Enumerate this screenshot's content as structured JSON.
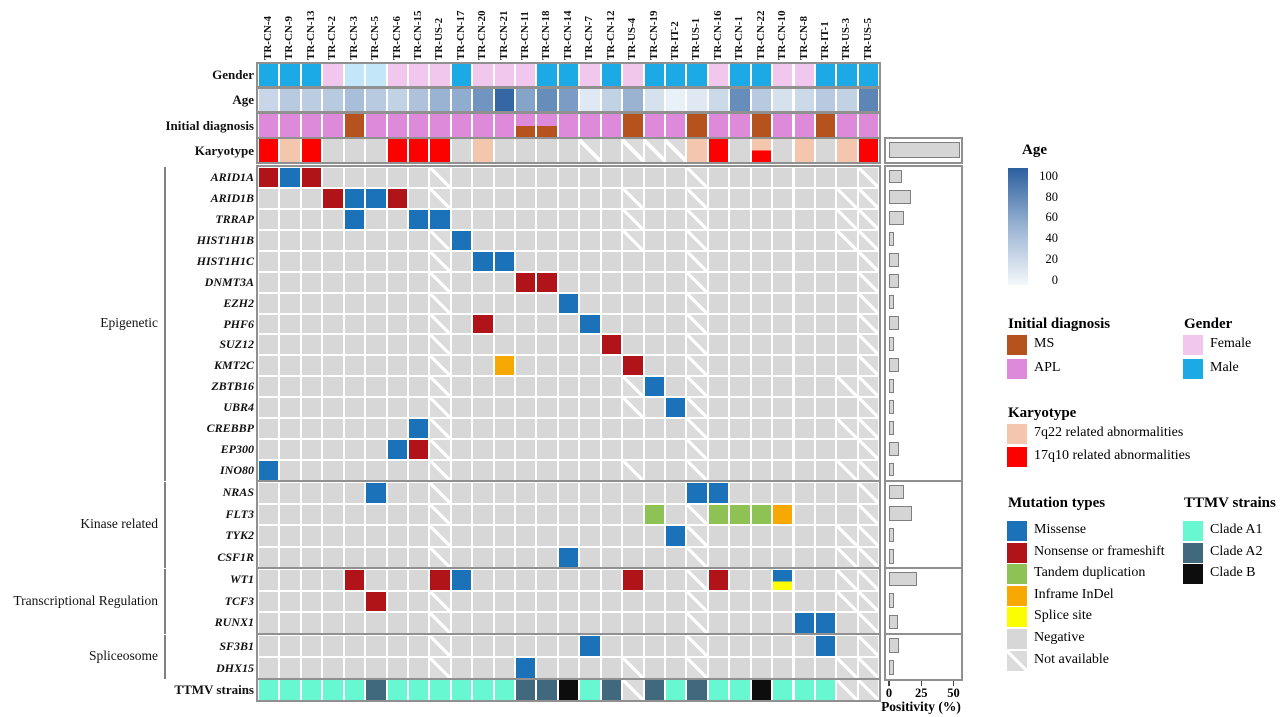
{
  "colors": {
    "male": "#1BAAE6",
    "male_light": "#C3E7F8",
    "female": "#F1C7EE",
    "APL": "#DE8ADB",
    "MS": "#B5521E",
    "7q22": "#F4C6AE",
    "17q10": "#FB0200",
    "MIS": "#1B72B9",
    "NON": "#B11418",
    "TDUP": "#8EC255",
    "INDEL": "#F8A802",
    "SPLICE": "#FDFD02",
    "NEG": "#D7D7D7",
    "NA_base": "#DBDBDB",
    "A1": "#68F8D1",
    "A2": "#41697E",
    "B": "#0D0D0D",
    "age_low": "#F4F8FC",
    "age_high": "#2B5F9F",
    "bar_fill": "#D5D5D5",
    "bar_border": "#7F7F7F",
    "panel_border": "#909090"
  },
  "chart_data": {
    "type": "heatmap",
    "subtype": "oncoprint",
    "samples": [
      "TR-CN-4",
      "TR-CN-9",
      "TR-CN-13",
      "TR-CN-2",
      "TR-CN-3",
      "TR-CN-5",
      "TR-CN-6",
      "TR-CN-15",
      "TR-US-2",
      "TR-CN-17",
      "TR-CN-20",
      "TR-CN-21",
      "TR-CN-11",
      "TR-CN-18",
      "TR-CN-14",
      "TR-CN-7",
      "TR-CN-12",
      "TR-US-4",
      "TR-CN-19",
      "TR-IT-2",
      "TR-US-1",
      "TR-CN-16",
      "TR-CN-1",
      "TR-CN-22",
      "TR-CN-10",
      "TR-CN-8",
      "TR-IT-1",
      "TR-US-3",
      "TR-US-5"
    ],
    "annotations": {
      "gender": {
        "label": "Gender",
        "values": [
          "M",
          "M",
          "M",
          "F",
          "M_light",
          "M_light",
          "F",
          "F",
          "F",
          "M",
          "F",
          "F",
          "F",
          "M",
          "M",
          "F",
          "M",
          "F",
          "M",
          "M",
          "M",
          "F",
          "M",
          "M",
          "F",
          "F",
          "M",
          "M",
          "M"
        ]
      },
      "age": {
        "label": "Age",
        "scale": [
          0,
          100
        ],
        "values": [
          22,
          30,
          28,
          30,
          38,
          30,
          25,
          35,
          45,
          50,
          65,
          95,
          55,
          70,
          60,
          10,
          25,
          45,
          15,
          5,
          10,
          20,
          70,
          30,
          15,
          20,
          30,
          25,
          75
        ]
      },
      "initial_diagnosis": {
        "label": "Initial diagnosis",
        "values": [
          "APL",
          "APL",
          "APL",
          "APL",
          "MS",
          "APL",
          "APL",
          "APL",
          "APL",
          "APL",
          "APL",
          "APL",
          "APL|MS",
          "APL|MS",
          "APL",
          "APL",
          "APL",
          "MS",
          "APL",
          "APL",
          "MS",
          "APL",
          "APL",
          "MS",
          "APL",
          "APL",
          "MS",
          "APL",
          "APL"
        ]
      },
      "karyotype": {
        "label": "Karyotype",
        "positivity_pct": 55,
        "values": [
          "17q10",
          "7q22",
          "17q10",
          "NEG",
          "NEG",
          "NEG",
          "17q10",
          "17q10",
          "17q10",
          "NEG",
          "7q22",
          "NEG",
          "NEG",
          "NEG",
          "NEG",
          "NA",
          "NEG",
          "NA",
          "NA",
          "NA",
          "7q22",
          "17q10",
          "NEG",
          "7q22|17q10",
          "NEG",
          "7q22",
          "NEG",
          "7q22",
          "17q10"
        ]
      }
    },
    "groups": [
      {
        "name": "Epigenetic",
        "genes": [
          {
            "name": "ARID1A",
            "positivity_pct": 10,
            "cells": {
              "1": "NON",
              "2": "MIS",
              "3": "NON",
              "9": "NA",
              "21": "NA",
              "29": "NA"
            }
          },
          {
            "name": "ARID1B",
            "positivity_pct": 17,
            "cells": {
              "4": "NON",
              "5": "MIS",
              "6": "MIS",
              "7": "NON",
              "9": "NA",
              "18": "NA",
              "21": "NA",
              "28": "NA",
              "29": "NA"
            }
          },
          {
            "name": "TRRAP",
            "positivity_pct": 12,
            "cells": {
              "5": "MIS",
              "8": "MIS",
              "9": "MIS",
              "18": "NA",
              "21": "NA",
              "28": "NA",
              "29": "NA"
            }
          },
          {
            "name": "HIST1H1B",
            "positivity_pct": 4,
            "cells": {
              "9": "NA",
              "10": "MIS",
              "18": "NA",
              "21": "NA",
              "28": "NA",
              "29": "NA"
            }
          },
          {
            "name": "HIST1H1C",
            "positivity_pct": 8,
            "cells": {
              "9": "NA",
              "11": "MIS",
              "12": "MIS",
              "21": "NA",
              "29": "NA"
            }
          },
          {
            "name": "DNMT3A",
            "positivity_pct": 8,
            "cells": {
              "9": "NA",
              "13": "NON",
              "14": "NON",
              "21": "NA",
              "29": "NA"
            }
          },
          {
            "name": "EZH2",
            "positivity_pct": 4,
            "cells": {
              "9": "NA",
              "15": "MIS",
              "21": "NA",
              "29": "NA"
            }
          },
          {
            "name": "PHF6",
            "positivity_pct": 8,
            "cells": {
              "9": "NA",
              "11": "NON",
              "16": "MIS",
              "21": "NA",
              "29": "NA"
            }
          },
          {
            "name": "SUZ12",
            "positivity_pct": 4,
            "cells": {
              "9": "NA",
              "17": "NON",
              "21": "NA",
              "29": "NA"
            }
          },
          {
            "name": "KMT2C",
            "positivity_pct": 8,
            "cells": {
              "9": "NA",
              "12": "INDEL",
              "18": "NON",
              "21": "NA",
              "29": "NA"
            }
          },
          {
            "name": "ZBTB16",
            "positivity_pct": 4,
            "cells": {
              "9": "NA",
              "18": "NA",
              "19": "MIS",
              "21": "NA",
              "28": "NA",
              "29": "NA"
            }
          },
          {
            "name": "UBR4",
            "positivity_pct": 4,
            "cells": {
              "9": "NA",
              "18": "NA",
              "20": "MIS",
              "21": "NA",
              "29": "NA"
            }
          },
          {
            "name": "CREBBP",
            "positivity_pct": 4,
            "cells": {
              "8": "MIS",
              "9": "NA",
              "21": "NA",
              "28": "NA",
              "29": "NA"
            }
          },
          {
            "name": "EP300",
            "positivity_pct": 8,
            "cells": {
              "7": "MIS",
              "8": "NON",
              "9": "NA",
              "21": "NA",
              "29": "NA"
            }
          },
          {
            "name": "INO80",
            "positivity_pct": 4,
            "cells": {
              "1": "MIS",
              "9": "NA",
              "18": "NA",
              "21": "NA",
              "28": "NA",
              "29": "NA"
            }
          }
        ]
      },
      {
        "name": "Kinase related",
        "genes": [
          {
            "name": "NRAS",
            "positivity_pct": 12,
            "cells": {
              "6": "MIS",
              "9": "NA",
              "21": "MIS",
              "22": "MIS",
              "29": "NA"
            }
          },
          {
            "name": "FLT3",
            "positivity_pct": 18,
            "cells": {
              "9": "NA",
              "19": "TDUP",
              "21": "NA",
              "22": "TDUP",
              "23": "TDUP",
              "24": "TDUP",
              "25": "INDEL",
              "29": "NA"
            }
          },
          {
            "name": "TYK2",
            "positivity_pct": 4,
            "cells": {
              "9": "NA",
              "20": "MIS",
              "21": "NA",
              "28": "NA",
              "29": "NA"
            }
          },
          {
            "name": "CSF1R",
            "positivity_pct": 4,
            "cells": {
              "9": "NA",
              "15": "MIS",
              "21": "NA",
              "28": "NA",
              "29": "NA"
            }
          }
        ]
      },
      {
        "name": "Transcriptional Regulation",
        "genes": [
          {
            "name": "WT1",
            "positivity_pct": 22,
            "cells": {
              "5": "NON",
              "9": "NON",
              "10": "MIS",
              "18": "NON",
              "21": "NA",
              "22": "NON",
              "25": "MIS|SPLICE",
              "28": "NA",
              "29": "NA"
            }
          },
          {
            "name": "TCF3",
            "positivity_pct": 4,
            "cells": {
              "6": "NON",
              "9": "NA",
              "21": "NA",
              "28": "NA",
              "29": "NA"
            }
          },
          {
            "name": "RUNX1",
            "positivity_pct": 7,
            "cells": {
              "9": "NA",
              "21": "NA",
              "26": "MIS",
              "27": "MIS",
              "29": "NA"
            }
          }
        ]
      },
      {
        "name": "Spliceosome",
        "genes": [
          {
            "name": "SF3B1",
            "positivity_pct": 8,
            "cells": {
              "9": "NA",
              "16": "MIS",
              "21": "NA",
              "27": "MIS",
              "29": "NA"
            }
          },
          {
            "name": "DHX15",
            "positivity_pct": 4,
            "cells": {
              "9": "NA",
              "13": "MIS",
              "18": "NA",
              "21": "NA",
              "28": "NA",
              "29": "NA"
            }
          }
        ]
      }
    ],
    "ttmv": {
      "label": "TTMV strains",
      "values": [
        "A1",
        "A1",
        "A1",
        "A1",
        "A1",
        "A2",
        "A1",
        "A1",
        "A1",
        "A1",
        "A1",
        "A1",
        "A2",
        "A2",
        "B",
        "A1",
        "A2",
        "NA",
        "A2",
        "A1",
        "A2",
        "A1",
        "A1",
        "B",
        "A1",
        "A1",
        "A1",
        "NA",
        "NA"
      ]
    },
    "positivity_axis": {
      "label": "Positivity (%)",
      "ticks": [
        0,
        25,
        50
      ],
      "max": 50
    }
  },
  "legend": {
    "age": {
      "title": "Age",
      "ticks": [
        100,
        80,
        60,
        40,
        20,
        0
      ]
    },
    "initial_diagnosis": {
      "title": "Initial diagnosis",
      "entries": [
        {
          "label": "MS",
          "color_key": "MS"
        },
        {
          "label": "APL",
          "color_key": "APL"
        }
      ]
    },
    "gender": {
      "title": "Gender",
      "entries": [
        {
          "label": "Female",
          "color_key": "female"
        },
        {
          "label": "Male",
          "color_key": "male"
        }
      ]
    },
    "karyotype": {
      "title": "Karyotype",
      "entries": [
        {
          "label": "7q22 related abnormalities",
          "color_key": "7q22"
        },
        {
          "label": "17q10 related abnormalities",
          "color_key": "17q10"
        }
      ]
    },
    "mutation_types": {
      "title": "Mutation types",
      "entries": [
        {
          "label": "Missense",
          "color_key": "MIS"
        },
        {
          "label": "Nonsense or frameshift",
          "color_key": "NON"
        },
        {
          "label": "Tandem duplication",
          "color_key": "TDUP"
        },
        {
          "label": "Inframe InDel",
          "color_key": "INDEL"
        },
        {
          "label": "Splice site",
          "color_key": "SPLICE"
        },
        {
          "label": "Negative",
          "color_key": "NEG"
        },
        {
          "label": "Not available",
          "color_key": "NA"
        }
      ]
    },
    "ttmv": {
      "title": "TTMV strains",
      "entries": [
        {
          "label": "Clade A1",
          "color_key": "A1"
        },
        {
          "label": "Clade A2",
          "color_key": "A2"
        },
        {
          "label": "Clade B",
          "color_key": "B"
        }
      ]
    }
  }
}
